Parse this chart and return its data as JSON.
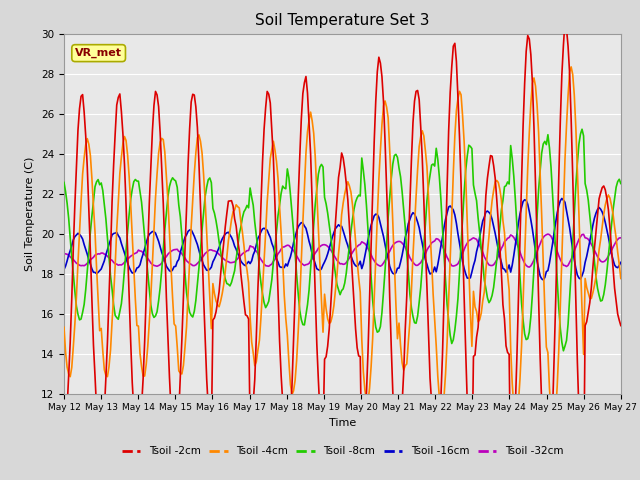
{
  "title": "Soil Temperature Set 3",
  "xlabel": "Time",
  "ylabel": "Soil Temperature (C)",
  "ylim": [
    12,
    30
  ],
  "yticks": [
    12,
    14,
    16,
    18,
    20,
    22,
    24,
    26,
    28,
    30
  ],
  "series": {
    "Tsoil -2cm": {
      "color": "#dd0000",
      "lw": 1.2
    },
    "Tsoil -4cm": {
      "color": "#ff8800",
      "lw": 1.2
    },
    "Tsoil -8cm": {
      "color": "#22cc00",
      "lw": 1.2
    },
    "Tsoil -16cm": {
      "color": "#0000cc",
      "lw": 1.2
    },
    "Tsoil -32cm": {
      "color": "#bb00bb",
      "lw": 1.2
    }
  },
  "annotation_text": "VR_met",
  "bg_color": "#e8e8e8",
  "grid_color": "#ffffff",
  "title_fontsize": 11,
  "tick_labels": [
    "May 12",
    "May 13",
    "May 14",
    "May 15",
    "May 16",
    "May 17",
    "May 18",
    "May 19",
    "May 20",
    "May 21",
    "May 22",
    "May 23",
    "May 24",
    "May 25",
    "May 26",
    "May 27"
  ]
}
